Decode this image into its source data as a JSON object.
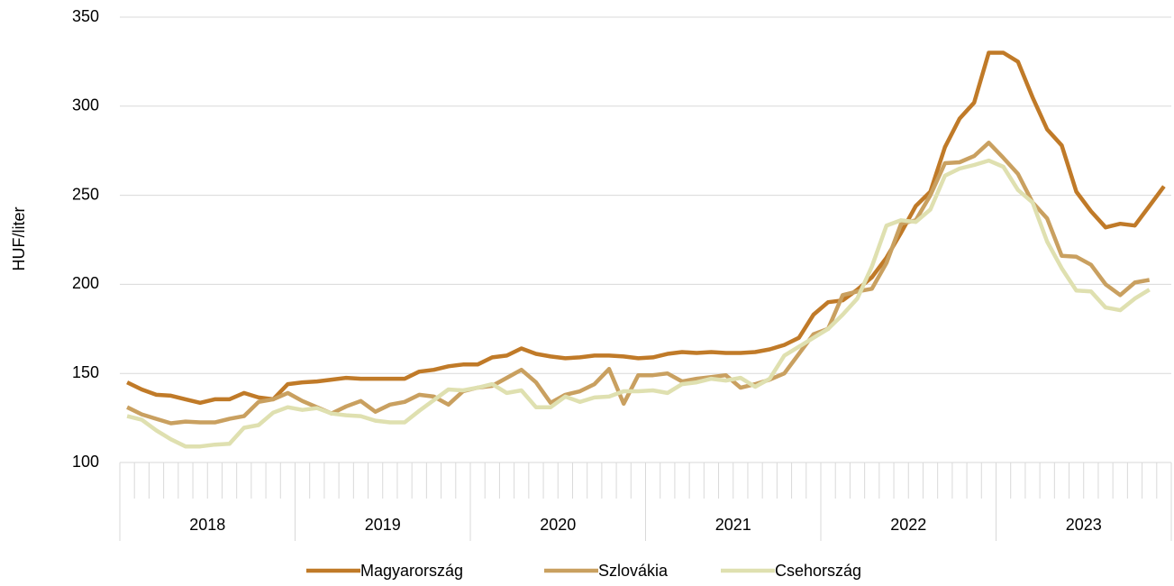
{
  "chart_data": {
    "type": "line",
    "y_label": "HUF/liter",
    "categories": [
      "2018",
      "2019",
      "2020",
      "2021",
      "2022",
      "2023"
    ],
    "ylim": [
      100,
      350
    ],
    "yticks": [
      100,
      150,
      200,
      250,
      300,
      350
    ],
    "grid": true,
    "legend": "bottom",
    "series": [
      {
        "name": "Magyarország",
        "color": "#c07a28",
        "values": [
          [
            145,
            141,
            138,
            137.5,
            135.5,
            133.5,
            135.5,
            135.5,
            139,
            136.5,
            135.5,
            144
          ],
          [
            145,
            145.5,
            146.5,
            147.5,
            147,
            147,
            147,
            147,
            151,
            152,
            154,
            155
          ],
          [
            155,
            159,
            160,
            164,
            161,
            159.5,
            158.5,
            159,
            160,
            160,
            159.5,
            158.5
          ],
          [
            159,
            161,
            162,
            161.5,
            162,
            161.5,
            161.5,
            162,
            163.5,
            166,
            170,
            183
          ],
          [
            190,
            191,
            197,
            204,
            215,
            229,
            244,
            252,
            277,
            293,
            302,
            330
          ],
          [
            330,
            325,
            305,
            287,
            278,
            252,
            241,
            232,
            234,
            233,
            244,
            255
          ]
        ]
      },
      {
        "name": "Szlovákia",
        "color": "#c9a060",
        "values": [
          [
            131,
            127,
            124.5,
            122,
            123,
            122.5,
            122.5,
            124.5,
            126,
            134,
            135.5,
            139
          ],
          [
            134.5,
            131,
            127.5,
            131.5,
            134.5,
            128.5,
            132.5,
            134,
            138,
            137,
            132.5,
            140
          ],
          [
            142,
            143,
            147.5,
            152,
            145,
            133.5,
            138,
            140,
            144,
            152.5,
            133,
            149
          ],
          [
            149,
            150,
            145.5,
            147,
            148,
            149,
            142,
            144,
            146.5,
            150,
            161,
            172
          ],
          [
            175,
            194,
            196,
            197.5,
            212,
            234,
            236,
            250,
            268,
            268.5,
            272,
            279.5
          ],
          [
            271,
            262,
            246,
            237,
            216,
            215.5,
            211,
            200,
            194,
            201,
            202.5
          ]
        ]
      },
      {
        "name": "Csehország",
        "color": "#dfe0b0",
        "values": [
          [
            126,
            124,
            118,
            113,
            109,
            109,
            110,
            110.5,
            119.5,
            121,
            128,
            131
          ],
          [
            129.5,
            130.5,
            127.5,
            126.5,
            126,
            123.5,
            122.5,
            122.5,
            129,
            135,
            141,
            140.5
          ],
          [
            142,
            144,
            139,
            140.5,
            131,
            131,
            137,
            134,
            136.5,
            137,
            140,
            140
          ],
          [
            140.5,
            139,
            144,
            145,
            147,
            146,
            147.5,
            142.5,
            147,
            160,
            165,
            170
          ],
          [
            175,
            183,
            192,
            210,
            233,
            236,
            235,
            242,
            261,
            265,
            267,
            269.5
          ],
          [
            266,
            253,
            246,
            224,
            209,
            196.5,
            196,
            187,
            185.5,
            192,
            197
          ]
        ]
      }
    ]
  }
}
